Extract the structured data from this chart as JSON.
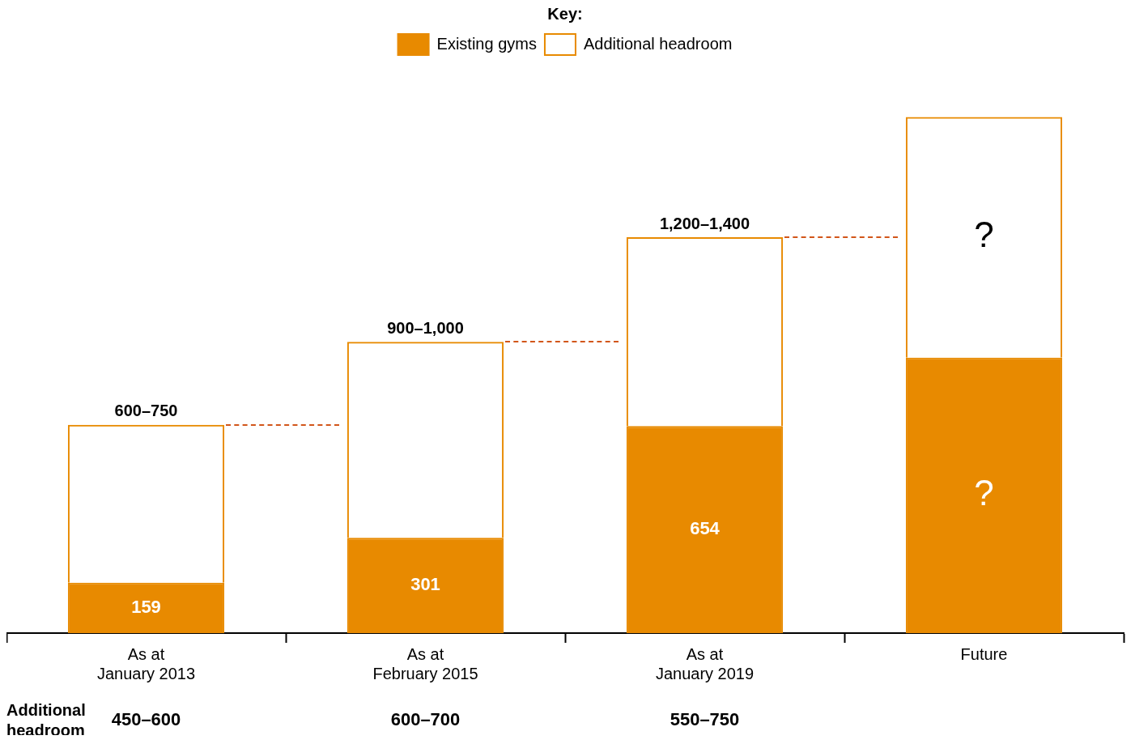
{
  "chart_data": {
    "type": "bar",
    "stacked": true,
    "legend": "top",
    "legend_title": "Key:",
    "tick_labels": "x",
    "grid": false,
    "categories": [
      "As at\nJanuary 2013",
      "As at\nFebruary 2015",
      "As at\nJanuary 2019",
      "Future"
    ],
    "series": [
      {
        "name": "Existing gyms",
        "color": "#e88a00",
        "values": [
          159,
          301,
          654,
          870
        ],
        "value_labels": [
          "159",
          "301",
          "654",
          "?"
        ]
      },
      {
        "name": "Additional headroom",
        "color": "#e88a00",
        "values": [
          499,
          619,
          596,
          760
        ],
        "value_labels": [
          null,
          null,
          null,
          "?"
        ]
      }
    ],
    "totals": [
      "600–750",
      "900–1,000",
      "1,200–1,400",
      null
    ],
    "annotations": [
      "Additional headroom",
      "450–600",
      "600–700",
      "550–750"
    ]
  }
}
